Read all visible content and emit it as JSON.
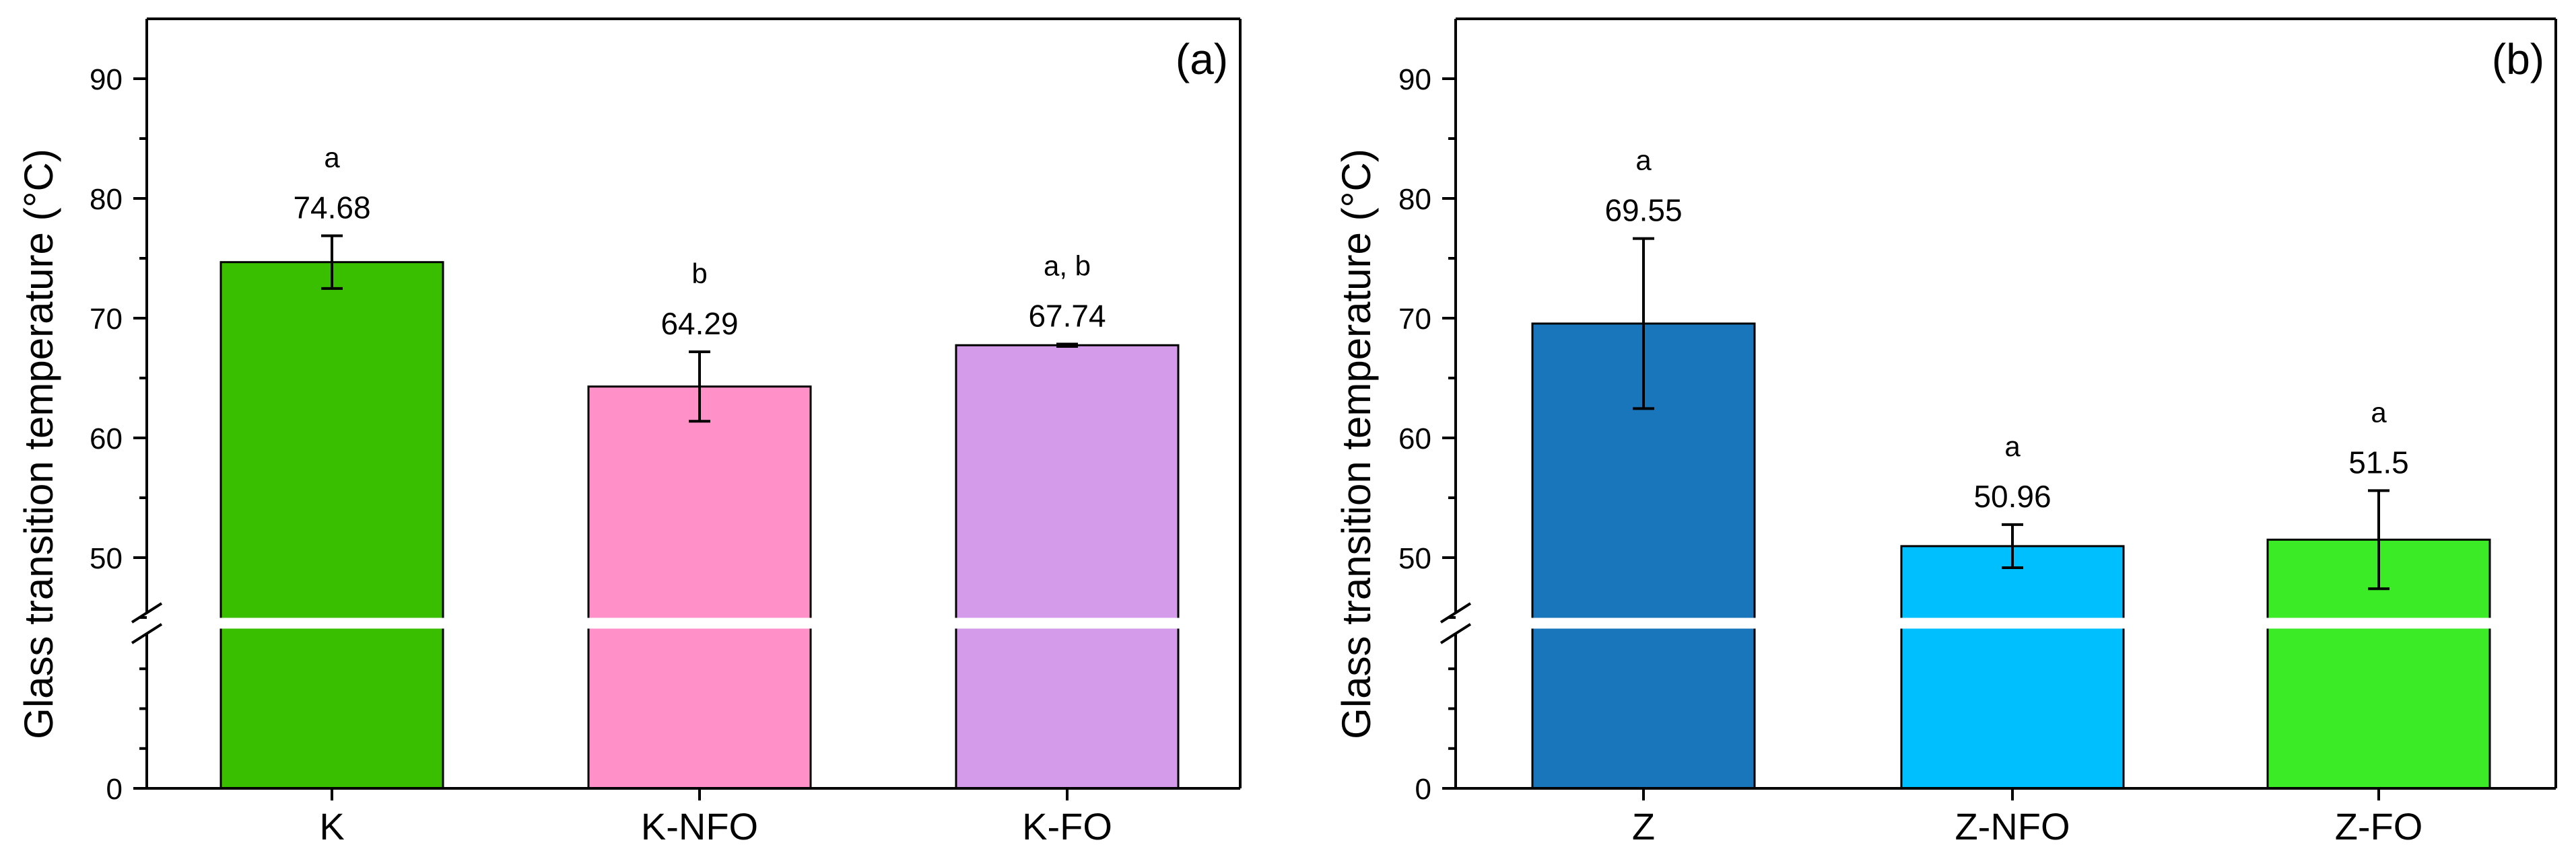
{
  "chart_data": [
    {
      "panel": "(a)",
      "type": "bar",
      "ylabel": "Glass transition temperature (°C)",
      "ylim": [
        0,
        95
      ],
      "axis_break": [
        40,
        45
      ],
      "yticks": [
        0,
        50,
        60,
        70,
        80,
        90
      ],
      "categories": [
        "K",
        "K-NFO",
        "K-FO"
      ],
      "values": [
        74.68,
        64.29,
        67.74
      ],
      "value_labels": [
        "74.68",
        "64.29",
        "67.74"
      ],
      "errors": [
        2.2,
        2.9,
        0.1
      ],
      "letters": [
        "a",
        "b",
        "a, b"
      ],
      "colors": [
        "#3abf00",
        "#ff91c8",
        "#d39be9"
      ]
    },
    {
      "panel": "(b)",
      "type": "bar",
      "ylabel": "Glass transition temperature (°C)",
      "ylim": [
        0,
        95
      ],
      "axis_break": [
        40,
        45
      ],
      "yticks": [
        0,
        50,
        60,
        70,
        80,
        90
      ],
      "categories": [
        "Z",
        "Z-NFO",
        "Z-FO"
      ],
      "values": [
        69.55,
        50.96,
        51.5
      ],
      "value_labels": [
        "69.55",
        "50.96",
        "51.5"
      ],
      "errors": [
        7.1,
        1.8,
        4.1
      ],
      "letters": [
        "a",
        "a",
        "a"
      ],
      "colors": [
        "#1a76ba",
        "#00bfff",
        "#3beb25"
      ]
    }
  ]
}
